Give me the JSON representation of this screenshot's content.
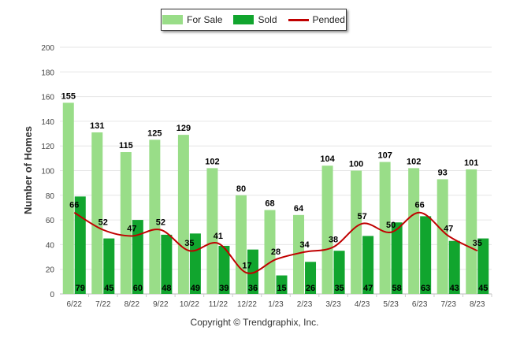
{
  "chart_data": {
    "type": "bar",
    "title": "",
    "xlabel": "",
    "ylabel": "Number of Homes",
    "ylim": [
      0,
      200
    ],
    "yticks": [
      0,
      20,
      40,
      60,
      80,
      100,
      120,
      140,
      160,
      180,
      200
    ],
    "grid": true,
    "legend_position": "top-center",
    "categories": [
      "6/22",
      "7/22",
      "8/22",
      "9/22",
      "10/22",
      "11/22",
      "12/22",
      "1/23",
      "2/23",
      "3/23",
      "4/23",
      "5/23",
      "6/23",
      "7/23",
      "8/23"
    ],
    "series": [
      {
        "name": "For Sale",
        "kind": "bar",
        "color": "#99dd88",
        "values": [
          155,
          131,
          115,
          125,
          129,
          102,
          80,
          68,
          64,
          104,
          100,
          107,
          102,
          93,
          101
        ]
      },
      {
        "name": "Sold",
        "kind": "bar",
        "color": "#11a52e",
        "values": [
          79,
          45,
          60,
          48,
          49,
          39,
          36,
          15,
          26,
          35,
          47,
          58,
          63,
          43,
          45
        ]
      },
      {
        "name": "Pended",
        "kind": "line",
        "color": "#c00000",
        "values": [
          66,
          52,
          47,
          52,
          35,
          41,
          17,
          28,
          34,
          38,
          57,
          50,
          66,
          47,
          35
        ]
      }
    ]
  },
  "footer": "Copyright © Trendgraphix, Inc."
}
